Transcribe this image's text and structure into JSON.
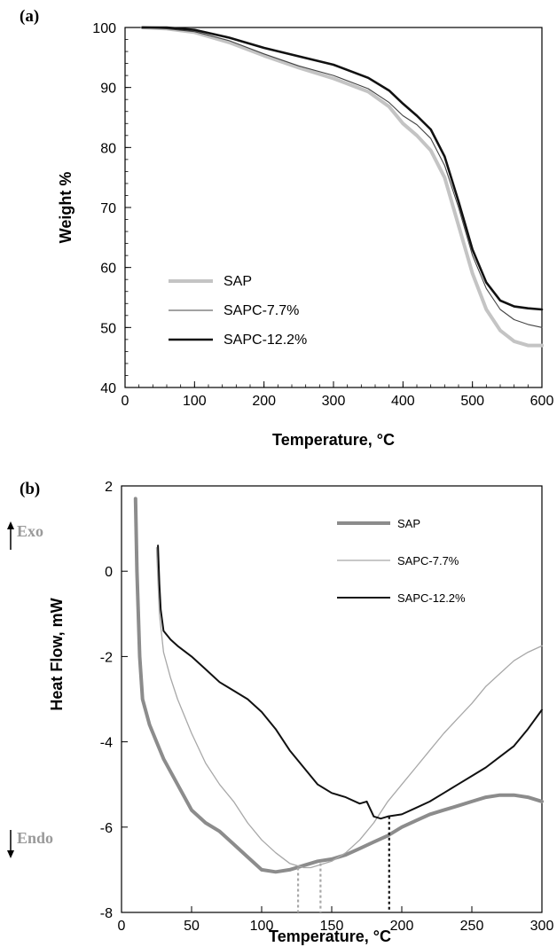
{
  "chart_data": [
    {
      "type": "line",
      "panel_label": "(a)",
      "xlabel": "Temperature, °C",
      "ylabel": "Weight %",
      "xlim": [
        0,
        600
      ],
      "ylim": [
        40,
        100
      ],
      "x_ticks": [
        0,
        100,
        200,
        300,
        400,
        500,
        600
      ],
      "y_ticks": [
        40,
        50,
        60,
        70,
        80,
        90,
        100
      ],
      "legend_position": "bottom-left",
      "grid": false,
      "series": [
        {
          "name": "SAP",
          "color": "#c4c4c4",
          "x": [
            25,
            60,
            100,
            150,
            200,
            250,
            300,
            350,
            380,
            400,
            420,
            440,
            460,
            480,
            500,
            520,
            540,
            560,
            580,
            600
          ],
          "y": [
            100,
            99.8,
            99.2,
            97.5,
            95.3,
            93.3,
            91.5,
            89.3,
            86.8,
            84.0,
            82.0,
            79.5,
            75.0,
            67.0,
            59.0,
            53.0,
            49.5,
            47.7,
            47.0,
            47.0
          ]
        },
        {
          "name": "SAPC-7.7%",
          "color": "#444444",
          "x": [
            25,
            60,
            100,
            150,
            200,
            250,
            300,
            350,
            380,
            400,
            420,
            440,
            460,
            480,
            500,
            520,
            540,
            560,
            580,
            600
          ],
          "y": [
            100,
            99.8,
            99.3,
            97.8,
            95.6,
            93.6,
            92.0,
            89.8,
            87.5,
            85.3,
            83.8,
            81.5,
            77.0,
            70.0,
            62.0,
            56.5,
            53.0,
            51.3,
            50.5,
            50.0
          ]
        },
        {
          "name": "SAPC-12.2%",
          "color": "#111111",
          "x": [
            25,
            60,
            100,
            150,
            200,
            250,
            300,
            350,
            380,
            400,
            420,
            440,
            460,
            480,
            500,
            520,
            540,
            560,
            580,
            600
          ],
          "y": [
            100,
            100,
            99.6,
            98.3,
            96.6,
            95.2,
            93.8,
            91.6,
            89.5,
            87.3,
            85.3,
            83.0,
            78.5,
            71.0,
            63.0,
            57.5,
            54.5,
            53.5,
            53.2,
            53.0
          ]
        }
      ]
    },
    {
      "type": "line",
      "panel_label": "(b)",
      "xlabel": "Temperature, °C",
      "ylabel": "Heat  Flow, mW",
      "xlim": [
        0,
        300
      ],
      "ylim": [
        -8,
        2
      ],
      "x_ticks": [
        0,
        50,
        100,
        150,
        200,
        250,
        300
      ],
      "y_ticks": [
        -8,
        -6,
        -4,
        -2,
        0,
        2
      ],
      "legend_position": "top-right",
      "grid": false,
      "exo_label": "Exo",
      "endo_label": "Endo",
      "series": [
        {
          "name": "SAP",
          "color": "#8c8c8c",
          "x": [
            10,
            11,
            13,
            15,
            20,
            25,
            30,
            40,
            50,
            60,
            70,
            80,
            90,
            100,
            110,
            120,
            130,
            140,
            150,
            160,
            170,
            180,
            190,
            200,
            210,
            220,
            230,
            240,
            250,
            260,
            270,
            280,
            290,
            300
          ],
          "y": [
            1.7,
            0,
            -2,
            -3,
            -3.6,
            -4.0,
            -4.4,
            -5.0,
            -5.6,
            -5.9,
            -6.1,
            -6.4,
            -6.7,
            -7.0,
            -7.05,
            -7.0,
            -6.9,
            -6.8,
            -6.75,
            -6.65,
            -6.5,
            -6.35,
            -6.2,
            -6.0,
            -5.85,
            -5.7,
            -5.6,
            -5.5,
            -5.4,
            -5.3,
            -5.25,
            -5.25,
            -5.3,
            -5.4
          ]
        },
        {
          "name": "SAPC-7.7%",
          "color": "#a8a8a8",
          "x": [
            25,
            27,
            30,
            35,
            40,
            50,
            60,
            70,
            80,
            90,
            100,
            110,
            120,
            130,
            135,
            140,
            150,
            160,
            170,
            180,
            190,
            200,
            210,
            220,
            230,
            240,
            250,
            260,
            270,
            280,
            290,
            300
          ],
          "y": [
            0.55,
            -1.0,
            -1.9,
            -2.5,
            -3.0,
            -3.8,
            -4.5,
            -5.0,
            -5.4,
            -5.9,
            -6.3,
            -6.6,
            -6.85,
            -6.95,
            -6.95,
            -6.9,
            -6.8,
            -6.6,
            -6.3,
            -5.9,
            -5.4,
            -5.0,
            -4.6,
            -4.2,
            -3.8,
            -3.45,
            -3.1,
            -2.7,
            -2.4,
            -2.1,
            -1.9,
            -1.75
          ]
        },
        {
          "name": "SAPC-12.2%",
          "color": "#111111",
          "x": [
            26,
            27,
            28,
            30,
            35,
            40,
            50,
            60,
            70,
            80,
            90,
            100,
            110,
            120,
            130,
            140,
            150,
            160,
            170,
            175,
            180,
            185,
            190,
            200,
            210,
            220,
            230,
            240,
            250,
            260,
            270,
            280,
            290,
            300
          ],
          "y": [
            0.6,
            -0.3,
            -0.9,
            -1.4,
            -1.6,
            -1.75,
            -2.0,
            -2.3,
            -2.6,
            -2.8,
            -3.0,
            -3.3,
            -3.7,
            -4.2,
            -4.6,
            -5.0,
            -5.2,
            -5.3,
            -5.45,
            -5.4,
            -5.75,
            -5.8,
            -5.75,
            -5.7,
            -5.55,
            -5.4,
            -5.2,
            -5.0,
            -4.8,
            -4.6,
            -4.35,
            -4.1,
            -3.7,
            -3.25
          ]
        }
      ],
      "markers": [
        {
          "x": 126,
          "y": -6.95,
          "color": "#a8a8a8"
        },
        {
          "x": 142,
          "y": -6.85,
          "color": "#a8a8a8"
        },
        {
          "x": 191,
          "y": -5.75,
          "color": "#111111"
        }
      ]
    }
  ]
}
